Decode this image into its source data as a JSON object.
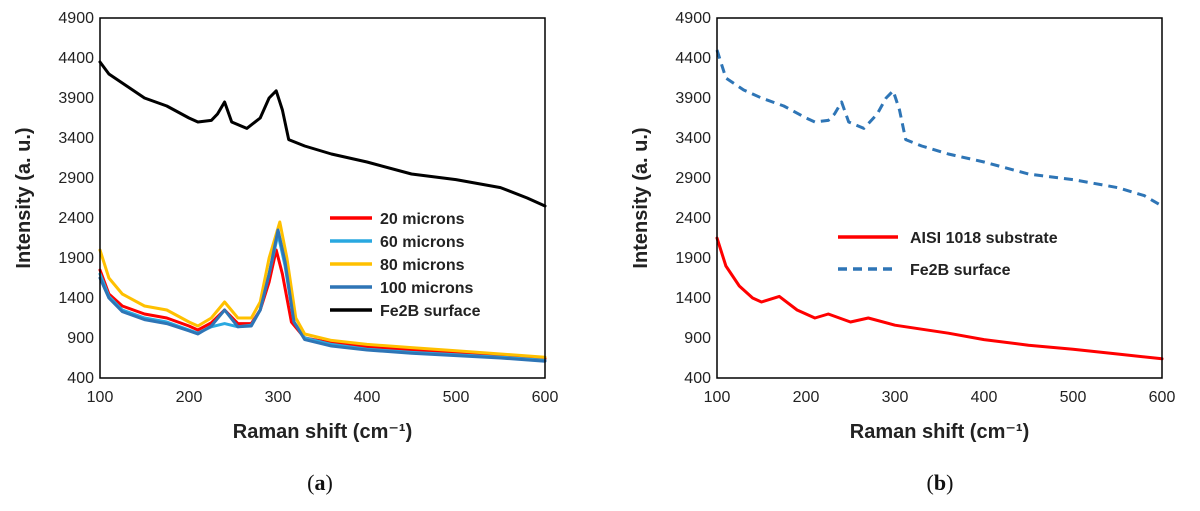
{
  "chart_data": [
    {
      "type": "line",
      "panel": "a",
      "caption_open": "(",
      "caption_letter": "a",
      "caption_close": ")",
      "xlabel": "Raman shift (cm⁻¹)",
      "ylabel": "Intensity (a. u.)",
      "xlim": [
        100,
        600
      ],
      "ylim": [
        400,
        4900
      ],
      "xticks": [
        100,
        200,
        300,
        400,
        500,
        600
      ],
      "yticks": [
        400,
        900,
        1400,
        1900,
        2400,
        2900,
        3400,
        3900,
        4400,
        4900
      ],
      "legend_position": "center-right",
      "series": [
        {
          "name": "20 microns",
          "color": "#ff0000",
          "dash": "",
          "points": [
            [
              100,
              1750
            ],
            [
              110,
              1450
            ],
            [
              125,
              1300
            ],
            [
              150,
              1200
            ],
            [
              175,
              1150
            ],
            [
              200,
              1050
            ],
            [
              210,
              1000
            ],
            [
              225,
              1090
            ],
            [
              240,
              1250
            ],
            [
              255,
              1080
            ],
            [
              270,
              1080
            ],
            [
              280,
              1250
            ],
            [
              290,
              1600
            ],
            [
              298,
              2000
            ],
            [
              305,
              1700
            ],
            [
              315,
              1100
            ],
            [
              330,
              900
            ],
            [
              360,
              840
            ],
            [
              400,
              790
            ],
            [
              450,
              750
            ],
            [
              500,
              720
            ],
            [
              550,
              680
            ],
            [
              600,
              640
            ]
          ]
        },
        {
          "name": "60 microns",
          "color": "#29a8e0",
          "dash": "",
          "points": [
            [
              100,
              1700
            ],
            [
              110,
              1420
            ],
            [
              125,
              1250
            ],
            [
              150,
              1150
            ],
            [
              175,
              1100
            ],
            [
              200,
              1000
            ],
            [
              210,
              960
            ],
            [
              225,
              1040
            ],
            [
              240,
              1080
            ],
            [
              255,
              1040
            ],
            [
              270,
              1060
            ],
            [
              280,
              1250
            ],
            [
              290,
              1700
            ],
            [
              300,
              2200
            ],
            [
              308,
              1800
            ],
            [
              318,
              1100
            ],
            [
              330,
              900
            ],
            [
              360,
              820
            ],
            [
              400,
              760
            ],
            [
              450,
              720
            ],
            [
              500,
              690
            ],
            [
              550,
              660
            ],
            [
              600,
              620
            ]
          ]
        },
        {
          "name": "80 microns",
          "color": "#ffc000",
          "dash": "",
          "points": [
            [
              100,
              2000
            ],
            [
              110,
              1650
            ],
            [
              125,
              1450
            ],
            [
              150,
              1300
            ],
            [
              175,
              1250
            ],
            [
              200,
              1100
            ],
            [
              210,
              1050
            ],
            [
              225,
              1150
            ],
            [
              240,
              1350
            ],
            [
              255,
              1150
            ],
            [
              270,
              1150
            ],
            [
              280,
              1350
            ],
            [
              290,
              1900
            ],
            [
              302,
              2350
            ],
            [
              310,
              1900
            ],
            [
              320,
              1150
            ],
            [
              330,
              950
            ],
            [
              360,
              870
            ],
            [
              400,
              820
            ],
            [
              450,
              780
            ],
            [
              500,
              740
            ],
            [
              550,
              700
            ],
            [
              600,
              660
            ]
          ]
        },
        {
          "name": "100 microns",
          "color": "#2e75b6",
          "dash": "",
          "points": [
            [
              100,
              1650
            ],
            [
              110,
              1400
            ],
            [
              125,
              1230
            ],
            [
              150,
              1130
            ],
            [
              175,
              1080
            ],
            [
              200,
              990
            ],
            [
              210,
              950
            ],
            [
              225,
              1050
            ],
            [
              240,
              1250
            ],
            [
              255,
              1040
            ],
            [
              270,
              1050
            ],
            [
              280,
              1250
            ],
            [
              290,
              1700
            ],
            [
              300,
              2250
            ],
            [
              308,
              1850
            ],
            [
              318,
              1100
            ],
            [
              330,
              880
            ],
            [
              360,
              800
            ],
            [
              400,
              750
            ],
            [
              450,
              710
            ],
            [
              500,
              680
            ],
            [
              550,
              650
            ],
            [
              600,
              610
            ]
          ]
        },
        {
          "name": "Fe2B surface",
          "color": "#000000",
          "dash": "",
          "points": [
            [
              100,
              4350
            ],
            [
              110,
              4200
            ],
            [
              130,
              4050
            ],
            [
              150,
              3900
            ],
            [
              175,
              3800
            ],
            [
              200,
              3650
            ],
            [
              210,
              3600
            ],
            [
              225,
              3620
            ],
            [
              232,
              3700
            ],
            [
              240,
              3850
            ],
            [
              248,
              3600
            ],
            [
              265,
              3520
            ],
            [
              280,
              3650
            ],
            [
              290,
              3900
            ],
            [
              298,
              3990
            ],
            [
              305,
              3750
            ],
            [
              312,
              3380
            ],
            [
              330,
              3300
            ],
            [
              360,
              3200
            ],
            [
              400,
              3100
            ],
            [
              450,
              2950
            ],
            [
              500,
              2880
            ],
            [
              550,
              2780
            ],
            [
              580,
              2650
            ],
            [
              600,
              2550
            ]
          ]
        }
      ]
    },
    {
      "type": "line",
      "panel": "b",
      "caption_open": "(",
      "caption_letter": "b",
      "caption_close": ")",
      "xlabel": "Raman shift (cm⁻¹)",
      "ylabel": "Intensity (a. u.)",
      "xlim": [
        100,
        600
      ],
      "ylim": [
        400,
        4900
      ],
      "xticks": [
        100,
        200,
        300,
        400,
        500,
        600
      ],
      "yticks": [
        400,
        900,
        1400,
        1900,
        2400,
        2900,
        3400,
        3900,
        4400,
        4900
      ],
      "legend_position": "center-right",
      "series": [
        {
          "name": "AISI 1018 substrate",
          "color": "#ff0000",
          "dash": "",
          "points": [
            [
              100,
              2150
            ],
            [
              110,
              1800
            ],
            [
              125,
              1550
            ],
            [
              140,
              1400
            ],
            [
              150,
              1350
            ],
            [
              170,
              1420
            ],
            [
              190,
              1250
            ],
            [
              210,
              1150
            ],
            [
              225,
              1200
            ],
            [
              250,
              1100
            ],
            [
              270,
              1150
            ],
            [
              300,
              1060
            ],
            [
              330,
              1010
            ],
            [
              360,
              960
            ],
            [
              400,
              880
            ],
            [
              450,
              810
            ],
            [
              500,
              760
            ],
            [
              550,
              700
            ],
            [
              600,
              640
            ]
          ]
        },
        {
          "name": "Fe2B surface",
          "color": "#2e75b6",
          "dash": "9 6",
          "points": [
            [
              100,
              4500
            ],
            [
              110,
              4150
            ],
            [
              130,
              4000
            ],
            [
              150,
              3900
            ],
            [
              175,
              3800
            ],
            [
              200,
              3650
            ],
            [
              210,
              3600
            ],
            [
              225,
              3620
            ],
            [
              232,
              3700
            ],
            [
              240,
              3850
            ],
            [
              248,
              3600
            ],
            [
              265,
              3520
            ],
            [
              280,
              3700
            ],
            [
              290,
              3900
            ],
            [
              298,
              3990
            ],
            [
              305,
              3750
            ],
            [
              312,
              3380
            ],
            [
              330,
              3300
            ],
            [
              360,
              3200
            ],
            [
              400,
              3100
            ],
            [
              450,
              2950
            ],
            [
              500,
              2880
            ],
            [
              550,
              2780
            ],
            [
              580,
              2680
            ],
            [
              600,
              2550
            ]
          ]
        }
      ]
    }
  ]
}
